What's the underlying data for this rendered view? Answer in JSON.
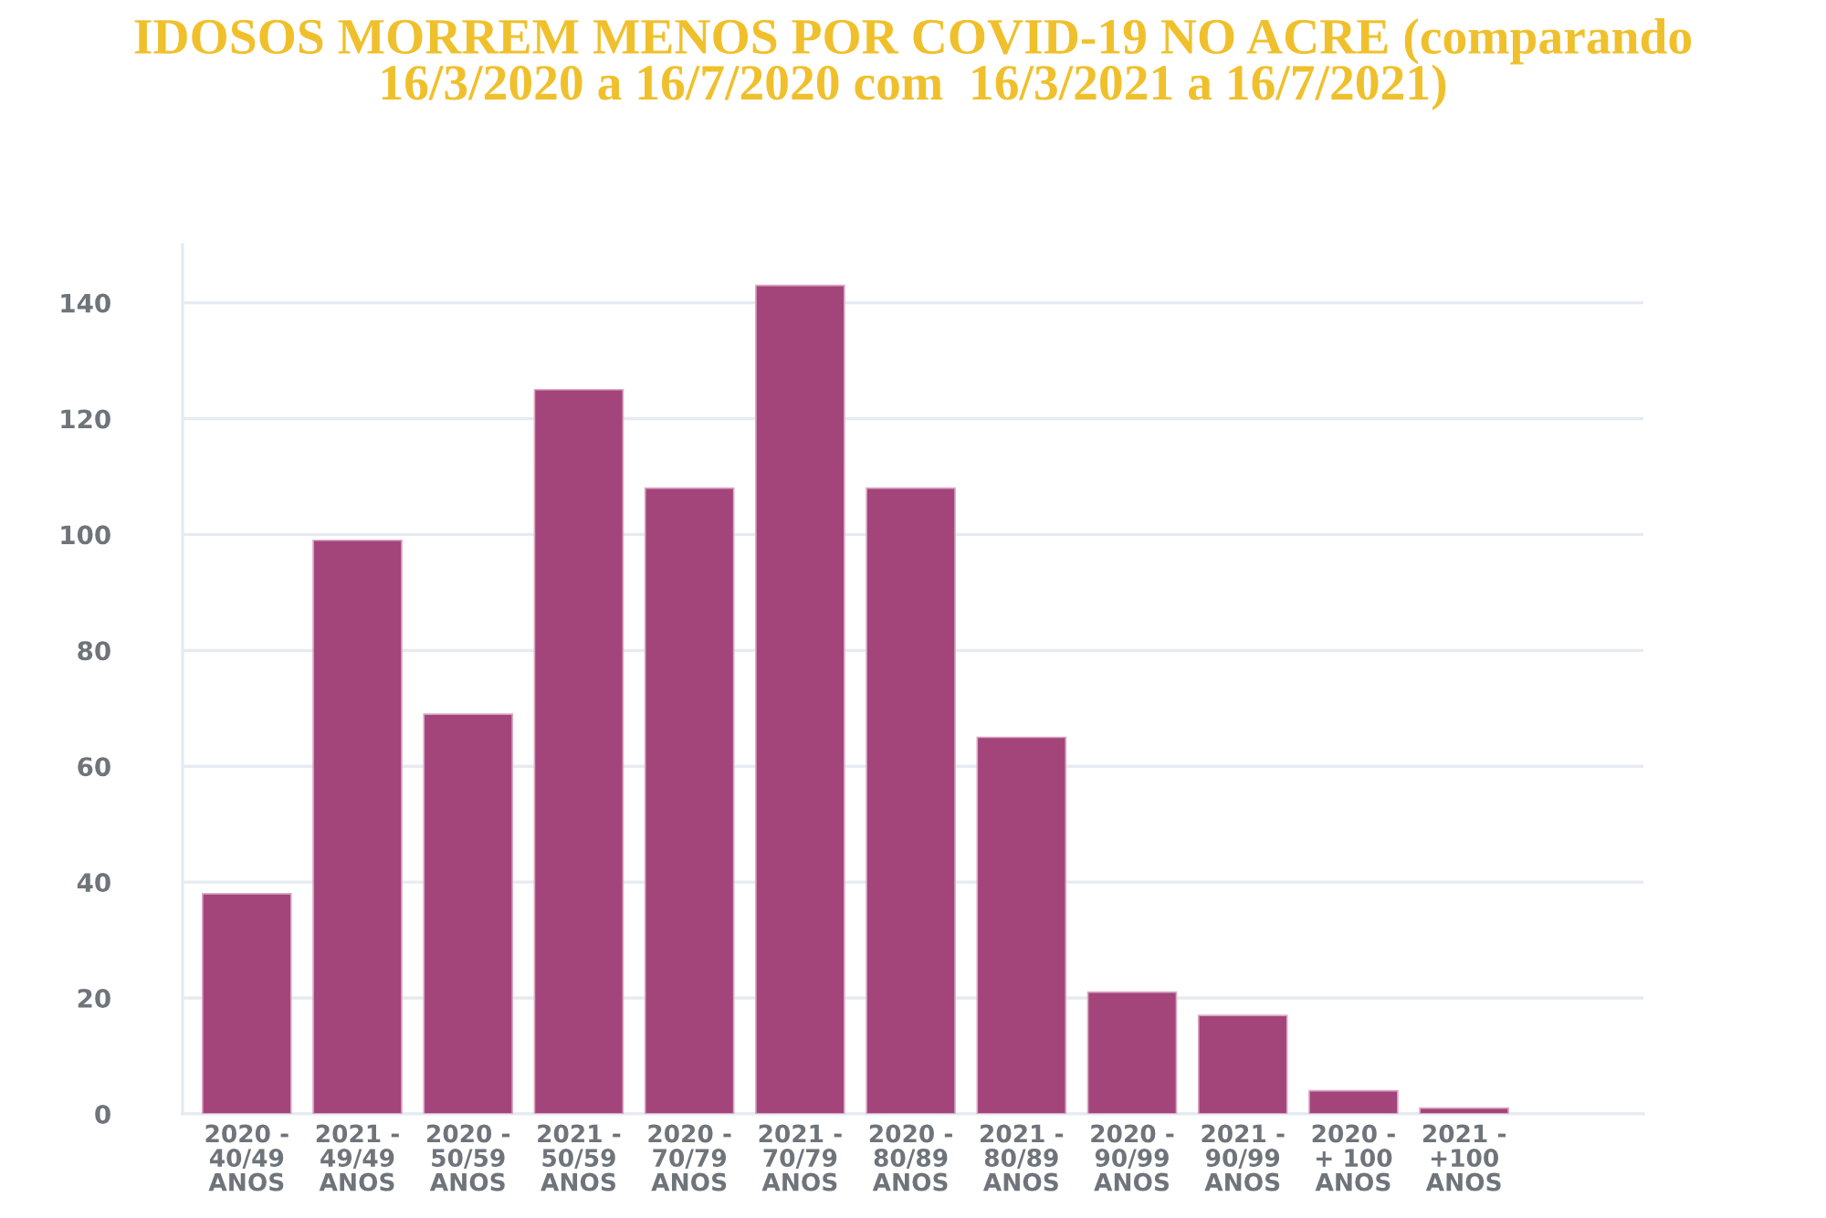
{
  "chart_data": {
    "type": "bar",
    "title": "IDOSOS MORREM MENOS POR COVID-19 NO ACRE (comparando\n16/3/2020 a 16/7/2020 com  16/3/2021 a 16/7/2021)",
    "categories": [
      "2020 -\n40/49\nANOS",
      "2021 -\n49/49\nANOS",
      "2020 -\n50/59\nANOS",
      "2021 -\n50/59\nANOS",
      "2020 -\n70/79\nANOS",
      "2021 -\n70/79\nANOS",
      "2020 -\n80/89\nANOS",
      "2021 -\n80/89\nANOS",
      "2020 -\n90/99\nANOS",
      "2021 -\n90/99\nANOS",
      "2020 -\n+ 100\nANOS",
      "2021 -\n+100\nANOS"
    ],
    "values": [
      38,
      99,
      69,
      125,
      108,
      143,
      108,
      65,
      21,
      17,
      4,
      1
    ],
    "color": "#a3447a",
    "ylim": [
      0,
      150
    ],
    "yticks": [
      0,
      20,
      40,
      60,
      80,
      100,
      120,
      140
    ],
    "grid": "y"
  }
}
